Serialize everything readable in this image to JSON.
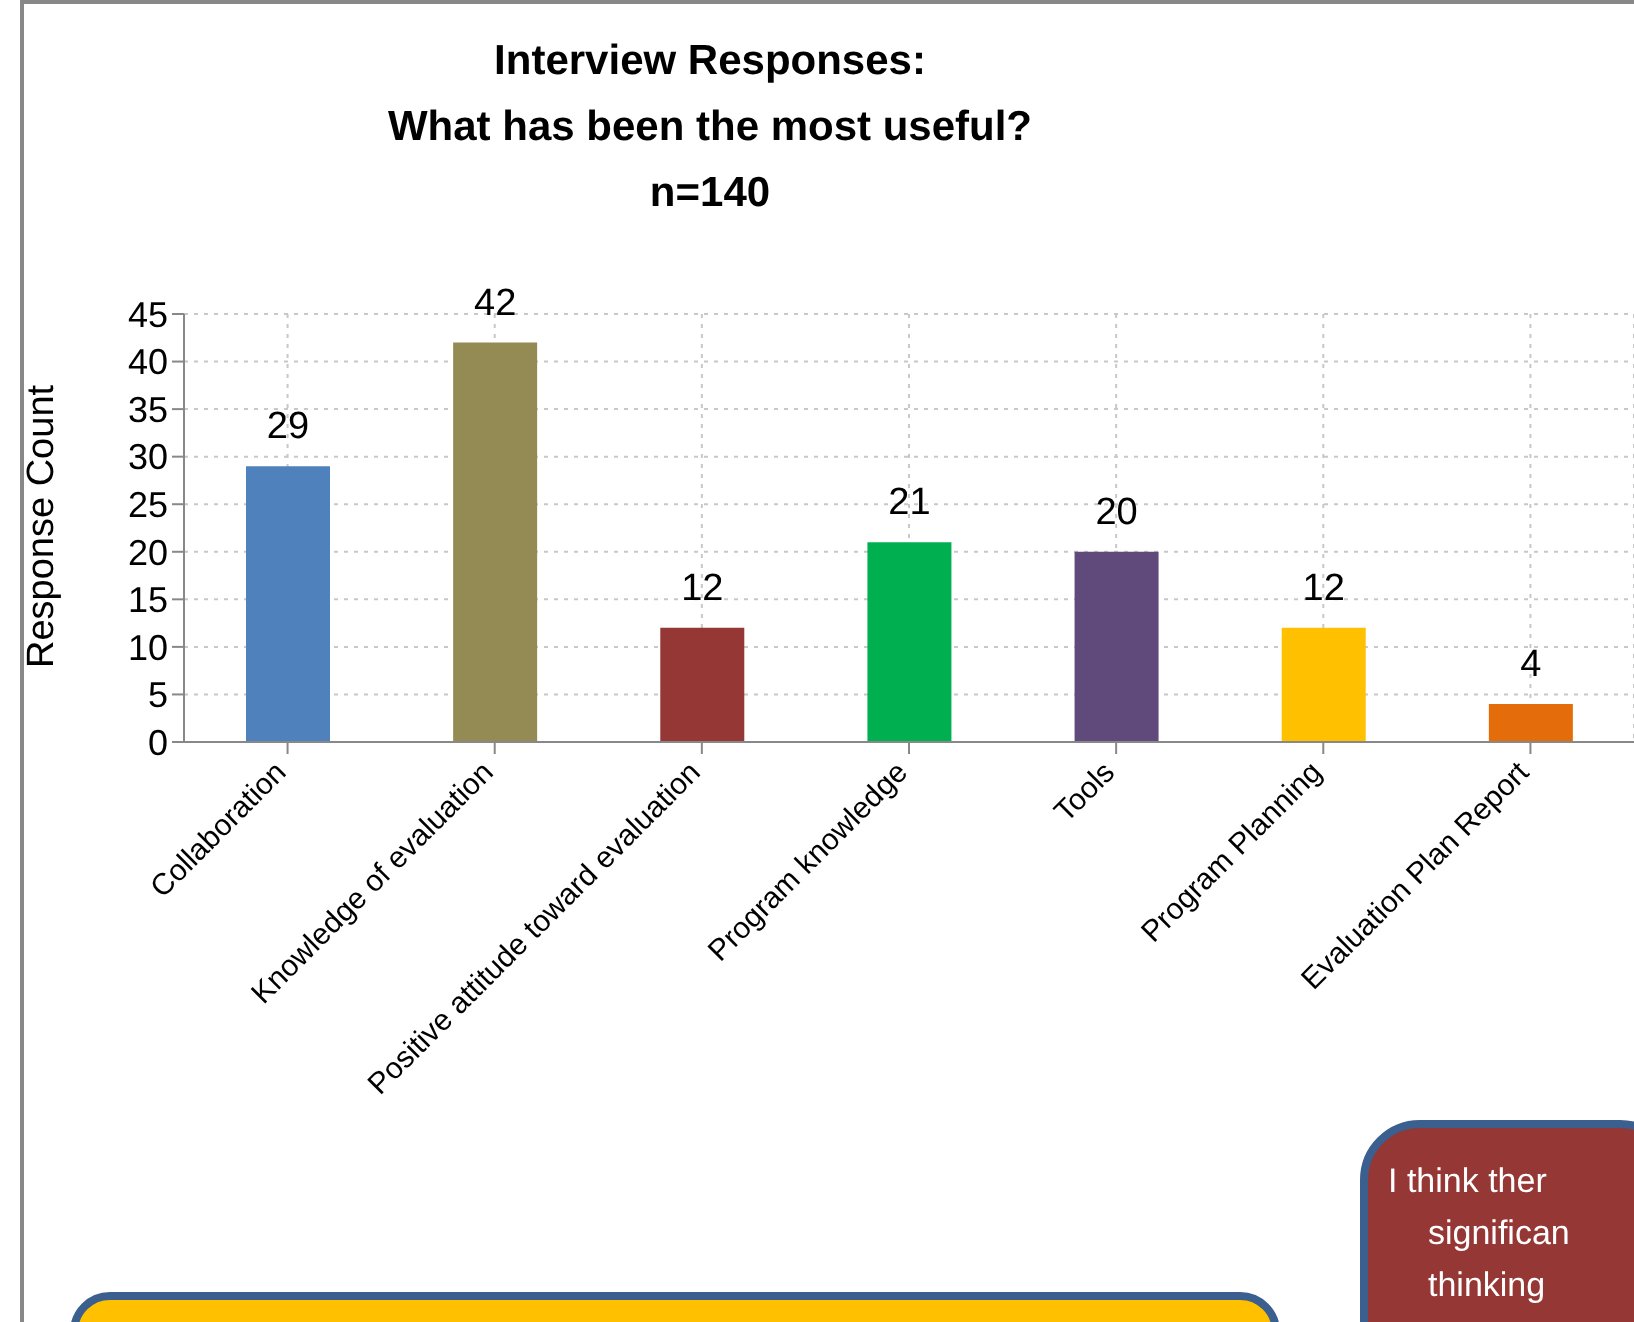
{
  "chart_data": {
    "type": "bar",
    "title": "Interview Responses:\nWhat has been the most useful?",
    "subtitle": "n=140",
    "ylabel": "Response Count",
    "categories": [
      "Collaboration",
      "Knowledge of evaluation",
      "Positive attitude toward evaluation",
      "Program knowledge",
      "Tools",
      "Program Planning",
      "Evaluation Plan Report"
    ],
    "values": [
      29,
      42,
      12,
      21,
      20,
      12,
      4
    ],
    "colors": [
      "#4f81bd",
      "#948a54",
      "#953735",
      "#00b050",
      "#604a7b",
      "#ffc000",
      "#e46c0a"
    ],
    "ylim": [
      0,
      45
    ],
    "yticks": [
      0,
      5,
      10,
      15,
      20,
      25,
      30,
      35,
      40,
      45
    ],
    "grid": true,
    "data_labels": true,
    "legend": false,
    "annotations": [
      "I think ther",
      "significan",
      "thinking"
    ]
  }
}
